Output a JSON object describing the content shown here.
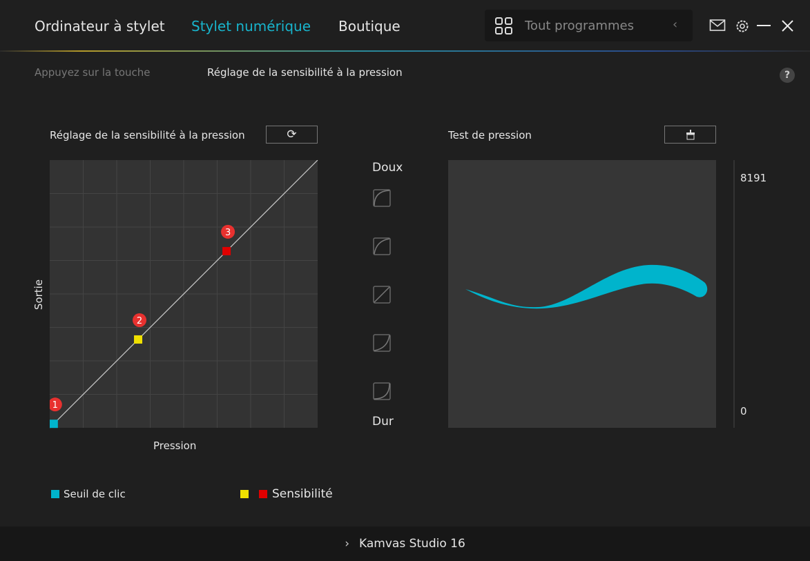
{
  "header": {
    "tabs": [
      "Ordinateur à stylet",
      "Stylet numérique",
      "Boutique"
    ],
    "active_tab": 1,
    "accent": "#18b4cc",
    "program_select": "Tout programmes"
  },
  "subtabs": [
    "Appuyez sur la touche",
    "Réglage de la sensibilité à la pression"
  ],
  "help": "?",
  "sensitivity": {
    "title": "Réglage de la sensibilité à la pression",
    "xlabel": "Pression",
    "ylabel": "Sortie",
    "points": [
      {
        "label": "1",
        "x": 0.015,
        "y": 0.015,
        "color": "#00b4cc"
      },
      {
        "label": "2",
        "x": 0.33,
        "y": 0.33,
        "color": "#f0e000"
      },
      {
        "label": "3",
        "x": 0.66,
        "y": 0.66,
        "color": "#e00000"
      }
    ]
  },
  "curves": {
    "top": "Doux",
    "bottom": "Dur",
    "presets": [
      "very-soft",
      "soft",
      "linear",
      "hard",
      "very-hard"
    ]
  },
  "test": {
    "title": "Test de pression",
    "max": "8191",
    "min": "0",
    "stroke_color": "#00b4cc"
  },
  "legend": {
    "threshold": "Seuil de clic",
    "sensitivity": "Sensibilité"
  },
  "footer": {
    "device": "Kamvas Studio 16"
  }
}
